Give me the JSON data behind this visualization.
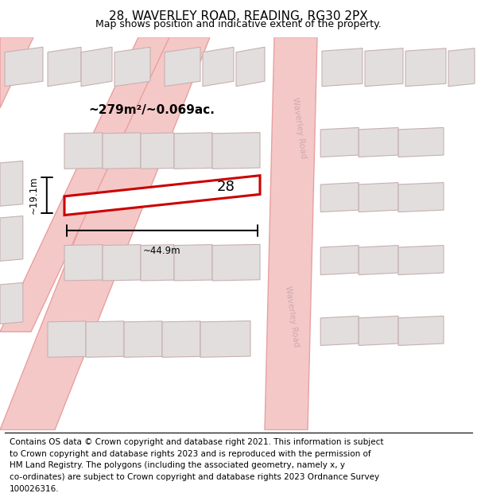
{
  "title": "28, WAVERLEY ROAD, READING, RG30 2PX",
  "subtitle": "Map shows position and indicative extent of the property.",
  "footer_lines": [
    "Contains OS data © Crown copyright and database right 2021. This information is subject",
    "to Crown copyright and database rights 2023 and is reproduced with the permission of",
    "HM Land Registry. The polygons (including the associated geometry, namely x, y",
    "co-ordinates) are subject to Crown copyright and database rights 2023 Ordnance Survey",
    "100026316."
  ],
  "area_label": "~279m²/~0.069ac.",
  "width_label": "~44.9m",
  "height_label": "~19.1m",
  "plot_number": "28",
  "bg_color": "#f0eeee",
  "road_color": "#f5c8c8",
  "road_stroke": "#e8a0a0",
  "building_fill": "#e2dede",
  "building_stroke": "#c8b0b0",
  "highlight_color": "#cc0000",
  "road_label_color": "#c8a8a8",
  "title_fontsize": 11,
  "subtitle_fontsize": 9,
  "footer_fontsize": 7.5,
  "annotation_fontsize": 10
}
